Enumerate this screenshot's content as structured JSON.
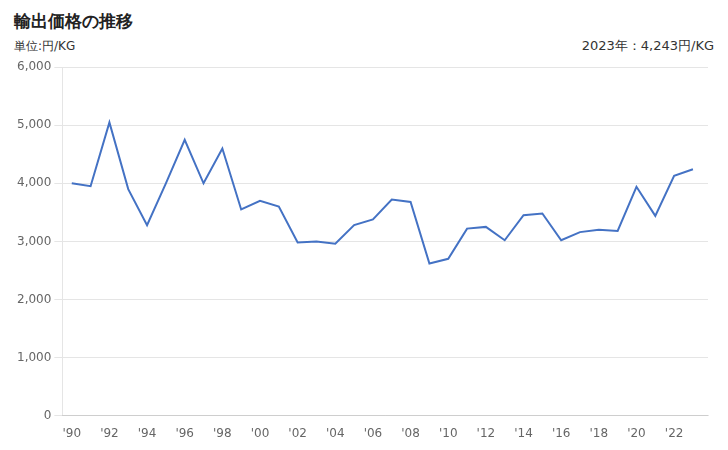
{
  "chart_data": {
    "type": "line",
    "title": "輸出価格の推移",
    "ylabel": "単位:円/KG",
    "annotations": [
      "2023年：4,243円/KG"
    ],
    "x": [
      1990,
      1991,
      1992,
      1993,
      1994,
      1995,
      1996,
      1997,
      1998,
      1999,
      2000,
      2001,
      2002,
      2003,
      2004,
      2005,
      2006,
      2007,
      2008,
      2009,
      2010,
      2011,
      2012,
      2013,
      2014,
      2015,
      2016,
      2017,
      2018,
      2019,
      2020,
      2021,
      2022,
      2023
    ],
    "values": [
      4000,
      3950,
      5050,
      3900,
      3280,
      4000,
      4750,
      4000,
      4600,
      3550,
      3700,
      3600,
      2980,
      3000,
      2960,
      3280,
      3380,
      3720,
      3680,
      2620,
      2700,
      3220,
      3250,
      3020,
      3450,
      3480,
      3020,
      3160,
      3200,
      3180,
      3940,
      3440,
      4130,
      4243
    ],
    "color": "#4472C4",
    "xlim": [
      1989.5,
      2023.8
    ],
    "xticks": [
      {
        "value": 1990,
        "label": "'90"
      },
      {
        "value": 1992,
        "label": "'92"
      },
      {
        "value": 1994,
        "label": "'94"
      },
      {
        "value": 1996,
        "label": "'96"
      },
      {
        "value": 1998,
        "label": "'98"
      },
      {
        "value": 2000,
        "label": "'00"
      },
      {
        "value": 2002,
        "label": "'02"
      },
      {
        "value": 2004,
        "label": "'04"
      },
      {
        "value": 2006,
        "label": "'06"
      },
      {
        "value": 2008,
        "label": "'08"
      },
      {
        "value": 2010,
        "label": "'10"
      },
      {
        "value": 2012,
        "label": "'12"
      },
      {
        "value": 2014,
        "label": "'14"
      },
      {
        "value": 2016,
        "label": "'16"
      },
      {
        "value": 2018,
        "label": "'18"
      },
      {
        "value": 2020,
        "label": "'20"
      },
      {
        "value": 2022,
        "label": "'22"
      }
    ],
    "ylim": [
      0,
      6000
    ],
    "yticks": [
      0,
      {
        "value": 1000,
        "label": "1,000"
      },
      {
        "value": 2000,
        "label": "2,000"
      },
      {
        "value": 3000,
        "label": "3,000"
      },
      {
        "value": 4000,
        "label": "4,000"
      },
      {
        "value": 5000,
        "label": "5,000"
      },
      {
        "value": 6000,
        "label": "6,000"
      }
    ],
    "grid": "y"
  }
}
